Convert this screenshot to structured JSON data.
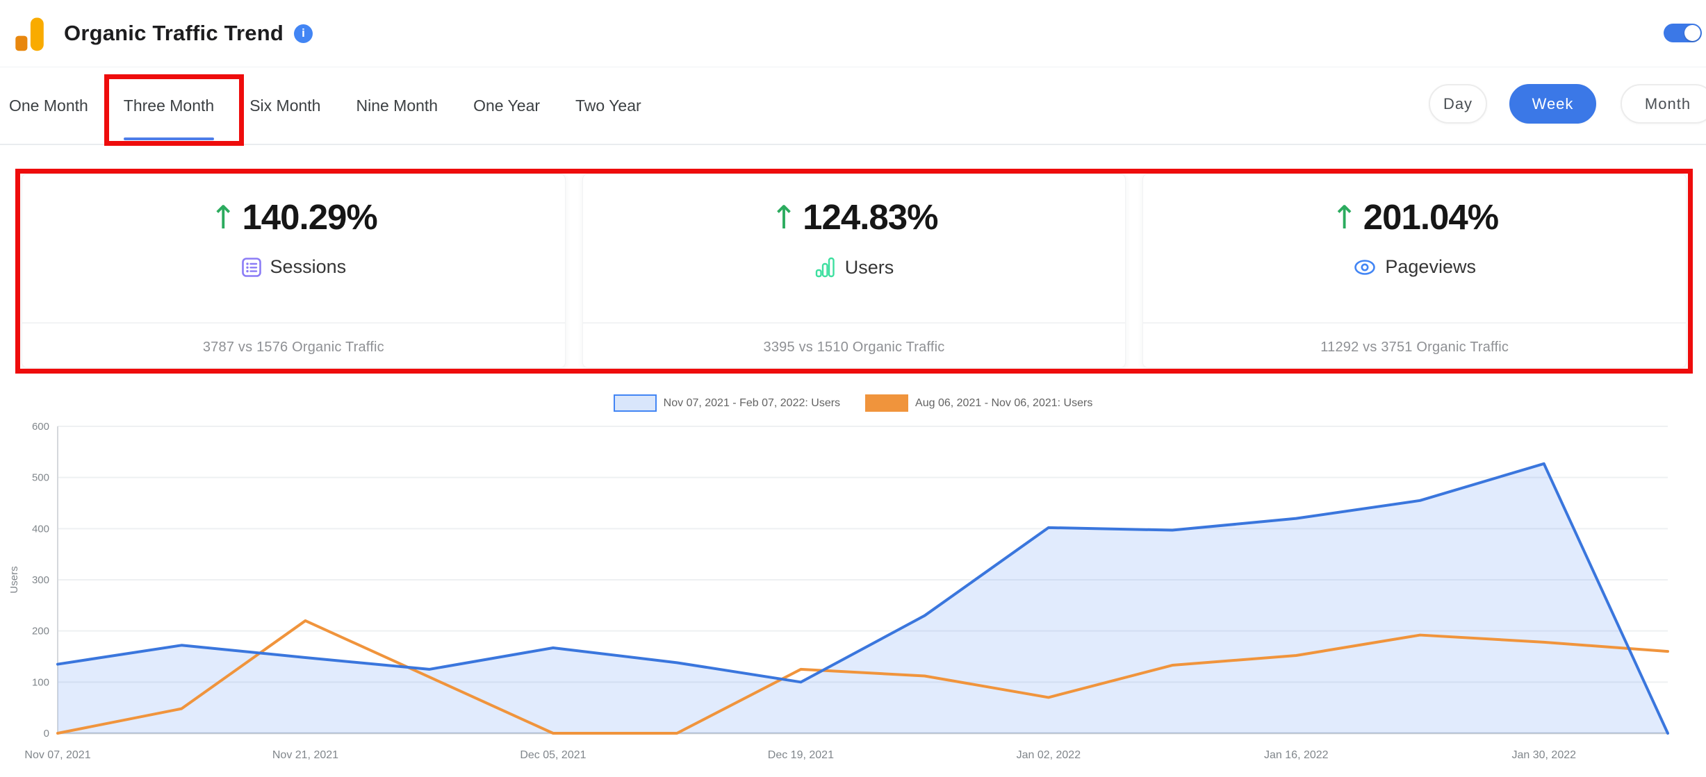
{
  "header": {
    "title": "Organic Traffic Trend",
    "info_glyph": "i",
    "toggle_on": true,
    "accent_color": "#3b78e7"
  },
  "tabs": {
    "items": [
      "One Month",
      "Three Month",
      "Six Month",
      "Nine Month",
      "One Year",
      "Two Year"
    ],
    "active": "Three Month",
    "active_underline_color": "#4d7de8",
    "annotation_color": "#ee0c0c"
  },
  "granularity": {
    "options": [
      "Day",
      "Week",
      "Month"
    ],
    "selected": "Week",
    "selected_color": "#3b78e7"
  },
  "cards": [
    {
      "trend_arrow": "↑",
      "percent": "140.29%",
      "metric": "Sessions",
      "icon": "sessions-list-icon",
      "icon_color": "#8b7cf6",
      "comparison": "3787 vs 1576 Organic Traffic"
    },
    {
      "trend_arrow": "↑",
      "percent": "124.83%",
      "metric": "Users",
      "icon": "users-bars-icon",
      "icon_color": "#3ddf9f",
      "comparison": "3395 vs 1510 Organic Traffic"
    },
    {
      "trend_arrow": "↑",
      "percent": "201.04%",
      "metric": "Pageviews",
      "icon": "pageviews-eye-icon",
      "icon_color": "#4285f4",
      "comparison": "11292 vs 3751 Organic Traffic"
    }
  ],
  "chart_data": {
    "type": "area",
    "x": [
      "Nov 07, 2021",
      "Nov 14, 2021",
      "Nov 21, 2021",
      "Nov 28, 2021",
      "Dec 05, 2021",
      "Dec 12, 2021",
      "Dec 19, 2021",
      "Dec 26, 2021",
      "Jan 02, 2022",
      "Jan 09, 2022",
      "Jan 16, 2022",
      "Jan 23, 2022",
      "Jan 30, 2022",
      "Feb 06, 2022"
    ],
    "x_tick_indices": [
      0,
      2,
      4,
      6,
      8,
      10,
      12
    ],
    "ylabel": "Users",
    "ylim": [
      0,
      600
    ],
    "yticks": [
      0,
      100,
      200,
      300,
      400,
      500,
      600
    ],
    "grid": true,
    "legend_position": "top",
    "series": [
      {
        "name": "Nov 07, 2021 - Feb 07, 2022: Users",
        "color": "#3a76dd",
        "area_fill": "rgba(66,133,244,0.16)",
        "swatch_fill": "#d9e6fb",
        "swatch_border": "#4285f4",
        "values": [
          135,
          172,
          148,
          125,
          167,
          138,
          100,
          230,
          402,
          397,
          420,
          455,
          527,
          0
        ]
      },
      {
        "name": "Aug 06, 2021 - Nov 06, 2021: Users",
        "color": "#f0943c",
        "area_fill": "none",
        "swatch_fill": "#f0943c",
        "swatch_border": "#f0943c",
        "values": [
          0,
          48,
          220,
          110,
          0,
          0,
          125,
          112,
          70,
          133,
          152,
          192,
          178,
          160
        ]
      }
    ]
  }
}
